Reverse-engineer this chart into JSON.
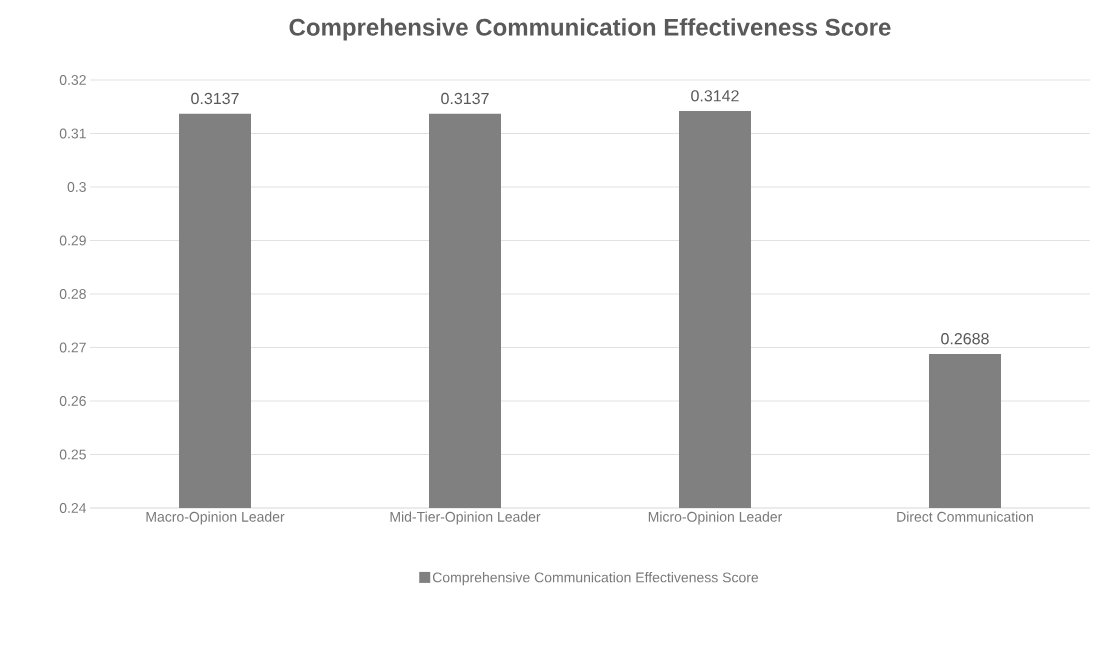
{
  "chart_data": {
    "type": "bar",
    "title": "Comprehensive Communication Effectiveness Score",
    "categories": [
      "Macro-Opinion Leader",
      "Mid-Tier-Opinion Leader",
      "Micro-Opinion Leader",
      "Direct Communication"
    ],
    "series": [
      {
        "name": "Comprehensive Communication Effectiveness Score",
        "color": "#808080",
        "values": [
          0.3137,
          0.3137,
          0.3142,
          0.2688
        ]
      }
    ],
    "ylim": [
      0.24,
      0.32
    ],
    "yticks": [
      0.24,
      0.25,
      0.26,
      0.27,
      0.28,
      0.29,
      0.3,
      0.31,
      0.32
    ],
    "grid": "y",
    "legend": "bottom",
    "data_labels": true
  }
}
